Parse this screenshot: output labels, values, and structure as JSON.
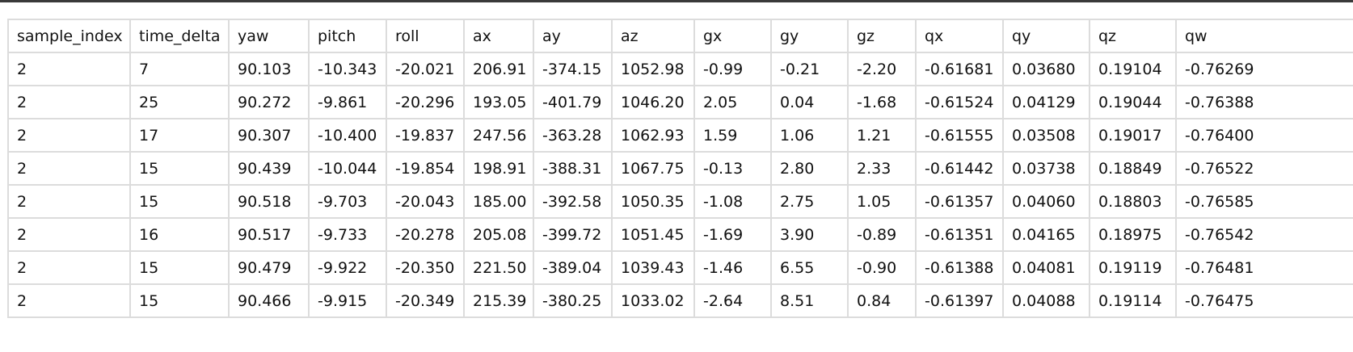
{
  "table": {
    "columns": [
      "sample_index",
      "time_delta",
      "yaw",
      "pitch",
      "roll",
      "ax",
      "ay",
      "az",
      "gx",
      "gy",
      "gz",
      "qx",
      "qy",
      "qz",
      "qw"
    ],
    "rows": [
      [
        "2",
        "7",
        "90.103",
        "-10.343",
        "-20.021",
        "206.91",
        "-374.15",
        "1052.98",
        "-0.99",
        "-0.21",
        "-2.20",
        "-0.61681",
        "0.03680",
        "0.19104",
        "-0.76269"
      ],
      [
        "2",
        "25",
        "90.272",
        "-9.861",
        "-20.296",
        "193.05",
        "-401.79",
        "1046.20",
        "2.05",
        "0.04",
        "-1.68",
        "-0.61524",
        "0.04129",
        "0.19044",
        "-0.76388"
      ],
      [
        "2",
        "17",
        "90.307",
        "-10.400",
        "-19.837",
        "247.56",
        "-363.28",
        "1062.93",
        "1.59",
        "1.06",
        "1.21",
        "-0.61555",
        "0.03508",
        "0.19017",
        "-0.76400"
      ],
      [
        "2",
        "15",
        "90.439",
        "-10.044",
        "-19.854",
        "198.91",
        "-388.31",
        "1067.75",
        "-0.13",
        "2.80",
        "2.33",
        "-0.61442",
        "0.03738",
        "0.18849",
        "-0.76522"
      ],
      [
        "2",
        "15",
        "90.518",
        "-9.703",
        "-20.043",
        "185.00",
        "-392.58",
        "1050.35",
        "-1.08",
        "2.75",
        "1.05",
        "-0.61357",
        "0.04060",
        "0.18803",
        "-0.76585"
      ],
      [
        "2",
        "16",
        "90.517",
        "-9.733",
        "-20.278",
        "205.08",
        "-399.72",
        "1051.45",
        "-1.69",
        "3.90",
        "-0.89",
        "-0.61351",
        "0.04165",
        "0.18975",
        "-0.76542"
      ],
      [
        "2",
        "15",
        "90.479",
        "-9.922",
        "-20.350",
        "221.50",
        "-389.04",
        "1039.43",
        "-1.46",
        "6.55",
        "-0.90",
        "-0.61388",
        "0.04081",
        "0.19119",
        "-0.76481"
      ],
      [
        "2",
        "15",
        "90.466",
        "-9.915",
        "-20.349",
        "215.39",
        "-380.25",
        "1033.02",
        "-2.64",
        "8.51",
        "0.84",
        "-0.61397",
        "0.04088",
        "0.19114",
        "-0.76475"
      ]
    ]
  }
}
